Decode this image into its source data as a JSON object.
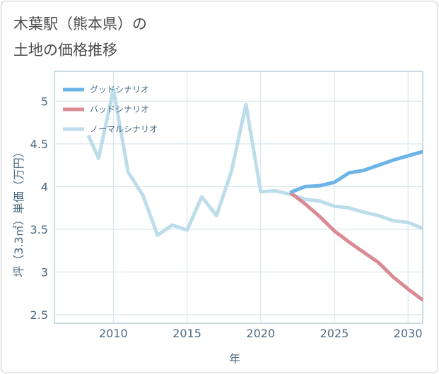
{
  "header": {
    "title_line1": "木葉駅（熊本県）の",
    "title_line2": "土地の価格推移"
  },
  "chart_data": {
    "type": "line",
    "title": "木葉駅（熊本県）の土地の価格推移",
    "xlabel": "年",
    "ylabel": "坪（3.3㎡）単価（万円）",
    "xlim": [
      2006,
      2031
    ],
    "ylim": [
      2.4,
      5.35
    ],
    "xticks": [
      2010,
      2015,
      2020,
      2025,
      2030
    ],
    "yticks": [
      2.5,
      3,
      3.5,
      4,
      4.5,
      5
    ],
    "xtick_labels": [
      "2010",
      "2015",
      "2020",
      "2025",
      "2030"
    ],
    "ytick_labels": [
      "2.5",
      "3",
      "3.5",
      "4",
      "4.5",
      "5"
    ],
    "grid": true,
    "legend_position": "top-left",
    "series": [
      {
        "name": "グッドシナリオ",
        "color": "#6cb4e8",
        "x": [
          2022,
          2023,
          2024,
          2025,
          2026,
          2027,
          2028,
          2029,
          2030,
          2031
        ],
        "y": [
          3.93,
          4.0,
          4.01,
          4.05,
          4.16,
          4.19,
          4.25,
          4.31,
          4.36,
          4.41
        ]
      },
      {
        "name": "バッドシナリオ",
        "color": "#d98a92",
        "x": [
          2022,
          2023,
          2024,
          2025,
          2026,
          2027,
          2028,
          2029,
          2030,
          2031
        ],
        "y": [
          3.93,
          3.8,
          3.65,
          3.48,
          3.35,
          3.23,
          3.11,
          2.94,
          2.8,
          2.67
        ]
      },
      {
        "name": "ノーマルシナリオ",
        "color": "#bcdde9",
        "x": [
          2008.3,
          2009,
          2010,
          2011,
          2012,
          2013,
          2014,
          2015,
          2016,
          2017,
          2018,
          2019,
          2020,
          2021,
          2022,
          2023,
          2024,
          2025,
          2026,
          2027,
          2028,
          2029,
          2030,
          2031
        ],
        "y": [
          4.6,
          4.33,
          5.14,
          4.17,
          3.9,
          3.43,
          3.55,
          3.49,
          3.88,
          3.66,
          4.17,
          4.96,
          3.94,
          3.95,
          3.91,
          3.85,
          3.83,
          3.77,
          3.75,
          3.7,
          3.66,
          3.6,
          3.58,
          3.51
        ]
      }
    ]
  }
}
